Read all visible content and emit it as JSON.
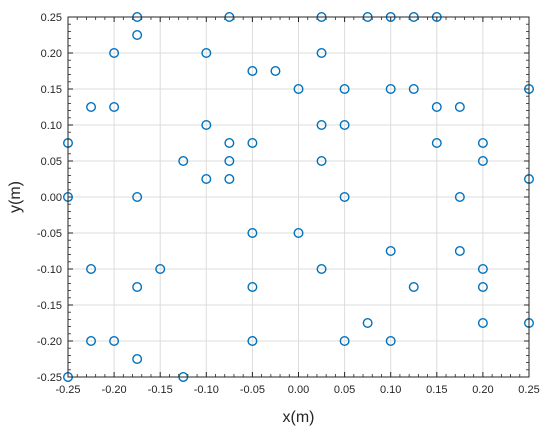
{
  "chart_data": {
    "type": "scatter",
    "xlabel": "x(m)",
    "ylabel": "y(m)",
    "xlim": [
      -0.25,
      0.25
    ],
    "ylim": [
      -0.25,
      0.25
    ],
    "xticks": [
      "-0.25",
      "-0.20",
      "-0.15",
      "-0.10",
      "-0.05",
      "0.00",
      "0.05",
      "0.10",
      "0.15",
      "0.20",
      "0.25"
    ],
    "yticks": [
      "0.25",
      "0.20",
      "0.15",
      "0.10",
      "0.05",
      "0.00",
      "-0.05",
      "-0.10",
      "-0.15",
      "-0.20",
      "-0.25"
    ],
    "grid": true,
    "marker": "open-circle",
    "marker_color": "#0072BD",
    "points": [
      [
        -0.175,
        0.25
      ],
      [
        -0.075,
        0.25
      ],
      [
        0.025,
        0.25
      ],
      [
        0.075,
        0.25
      ],
      [
        0.1,
        0.25
      ],
      [
        0.125,
        0.25
      ],
      [
        0.15,
        0.25
      ],
      [
        -0.175,
        0.225
      ],
      [
        -0.2,
        0.2
      ],
      [
        -0.1,
        0.2
      ],
      [
        0.025,
        0.2
      ],
      [
        -0.05,
        0.175
      ],
      [
        -0.025,
        0.175
      ],
      [
        0.0,
        0.15
      ],
      [
        0.05,
        0.15
      ],
      [
        0.1,
        0.15
      ],
      [
        0.125,
        0.15
      ],
      [
        0.25,
        0.15
      ],
      [
        -0.225,
        0.125
      ],
      [
        -0.2,
        0.125
      ],
      [
        0.15,
        0.125
      ],
      [
        0.175,
        0.125
      ],
      [
        -0.1,
        0.1
      ],
      [
        0.025,
        0.1
      ],
      [
        0.05,
        0.1
      ],
      [
        -0.25,
        0.075
      ],
      [
        -0.075,
        0.075
      ],
      [
        -0.05,
        0.075
      ],
      [
        0.15,
        0.075
      ],
      [
        0.2,
        0.075
      ],
      [
        -0.125,
        0.05
      ],
      [
        -0.075,
        0.05
      ],
      [
        0.025,
        0.05
      ],
      [
        0.2,
        0.05
      ],
      [
        -0.1,
        0.025
      ],
      [
        -0.075,
        0.025
      ],
      [
        0.25,
        0.025
      ],
      [
        -0.25,
        0.0
      ],
      [
        -0.175,
        0.0
      ],
      [
        0.05,
        0.0
      ],
      [
        0.175,
        0.0
      ],
      [
        -0.05,
        -0.05
      ],
      [
        0.0,
        -0.05
      ],
      [
        0.1,
        -0.075
      ],
      [
        0.175,
        -0.075
      ],
      [
        -0.225,
        -0.1
      ],
      [
        -0.15,
        -0.1
      ],
      [
        0.025,
        -0.1
      ],
      [
        0.2,
        -0.1
      ],
      [
        -0.175,
        -0.125
      ],
      [
        -0.05,
        -0.125
      ],
      [
        0.125,
        -0.125
      ],
      [
        0.2,
        -0.125
      ],
      [
        0.075,
        -0.175
      ],
      [
        0.2,
        -0.175
      ],
      [
        0.25,
        -0.175
      ],
      [
        -0.225,
        -0.2
      ],
      [
        -0.2,
        -0.2
      ],
      [
        -0.05,
        -0.2
      ],
      [
        0.05,
        -0.2
      ],
      [
        0.1,
        -0.2
      ],
      [
        -0.175,
        -0.225
      ],
      [
        -0.25,
        -0.25
      ],
      [
        -0.125,
        -0.25
      ]
    ]
  }
}
